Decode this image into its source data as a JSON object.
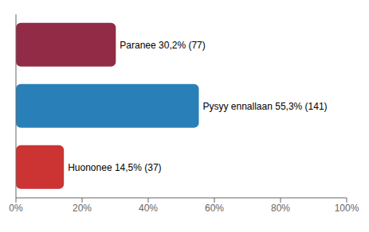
{
  "chart_data": {
    "type": "bar",
    "orientation": "horizontal",
    "categories": [
      "Paranee 30,2% (77)",
      "Pysyy ennallaan 55,3% (141)",
      "Huononee 14,5% (37)"
    ],
    "values": [
      30.2,
      55.3,
      14.5
    ],
    "colors": [
      "#922b45",
      "#2980b9",
      "#cc3333"
    ],
    "xlim": [
      0,
      100
    ],
    "xticks": [
      {
        "value": 0,
        "label": "0%"
      },
      {
        "value": 20,
        "label": "20%"
      },
      {
        "value": 40,
        "label": "40%"
      },
      {
        "value": 60,
        "label": "60%"
      },
      {
        "value": 80,
        "label": "80%"
      },
      {
        "value": 100,
        "label": "100%"
      }
    ],
    "tick_labels": "x",
    "grid": false
  }
}
